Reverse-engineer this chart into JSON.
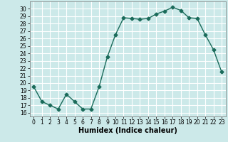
{
  "title": "",
  "xlabel": "Humidex (Indice chaleur)",
  "ylabel": "",
  "x": [
    0,
    1,
    2,
    3,
    4,
    5,
    6,
    7,
    8,
    9,
    10,
    11,
    12,
    13,
    14,
    15,
    16,
    17,
    18,
    19,
    20,
    21,
    22,
    23
  ],
  "y": [
    19.5,
    17.5,
    17.0,
    16.5,
    18.5,
    17.5,
    16.5,
    16.5,
    19.5,
    23.5,
    26.5,
    28.8,
    28.7,
    28.6,
    28.7,
    29.3,
    29.7,
    30.2,
    29.8,
    28.8,
    28.7,
    26.5,
    24.5,
    21.5
  ],
  "line_color": "#1a6b5a",
  "marker": "D",
  "marker_size": 2.5,
  "line_width": 1.0,
  "background_color": "#cce9e9",
  "grid_color": "#ffffff",
  "ylim": [
    15.5,
    31.0
  ],
  "xlim": [
    -0.5,
    23.5
  ],
  "yticks": [
    16,
    17,
    18,
    19,
    20,
    21,
    22,
    23,
    24,
    25,
    26,
    27,
    28,
    29,
    30
  ],
  "xticks": [
    0,
    1,
    2,
    3,
    4,
    5,
    6,
    7,
    8,
    9,
    10,
    11,
    12,
    13,
    14,
    15,
    16,
    17,
    18,
    19,
    20,
    21,
    22,
    23
  ],
  "tick_fontsize": 5.5,
  "label_fontsize": 7
}
